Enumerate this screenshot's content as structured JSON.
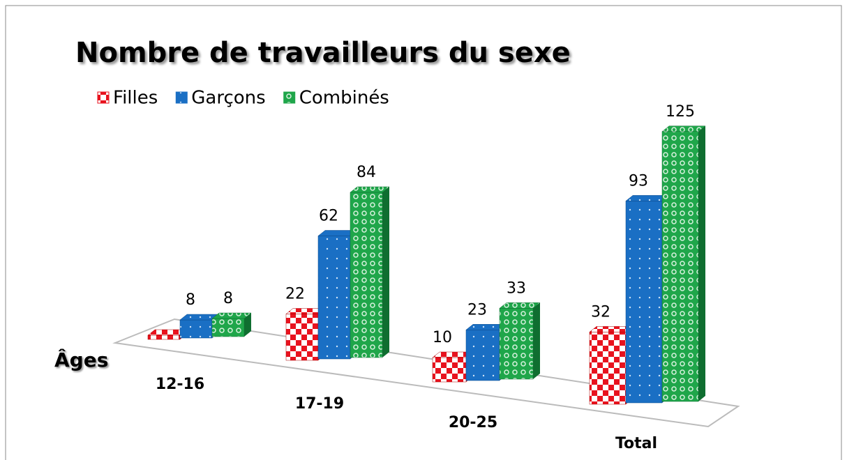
{
  "chart_data": {
    "type": "bar3d",
    "title": "Nombre de travailleurs du sexe",
    "x_label": "Âges",
    "categories": [
      "12-16",
      "17-19",
      "20-25",
      "Total"
    ],
    "series": [
      {
        "name": "Filles",
        "color": "#e8121e",
        "values": [
          0,
          22,
          10,
          32
        ],
        "value_labels": [
          null,
          "22",
          "10",
          "32"
        ]
      },
      {
        "name": "Garçons",
        "color": "#1a6fc4",
        "values": [
          8,
          62,
          23,
          93
        ]
      },
      {
        "name": "Combinés",
        "color": "#1fa64a",
        "values": [
          8,
          84,
          33,
          125
        ]
      }
    ]
  }
}
